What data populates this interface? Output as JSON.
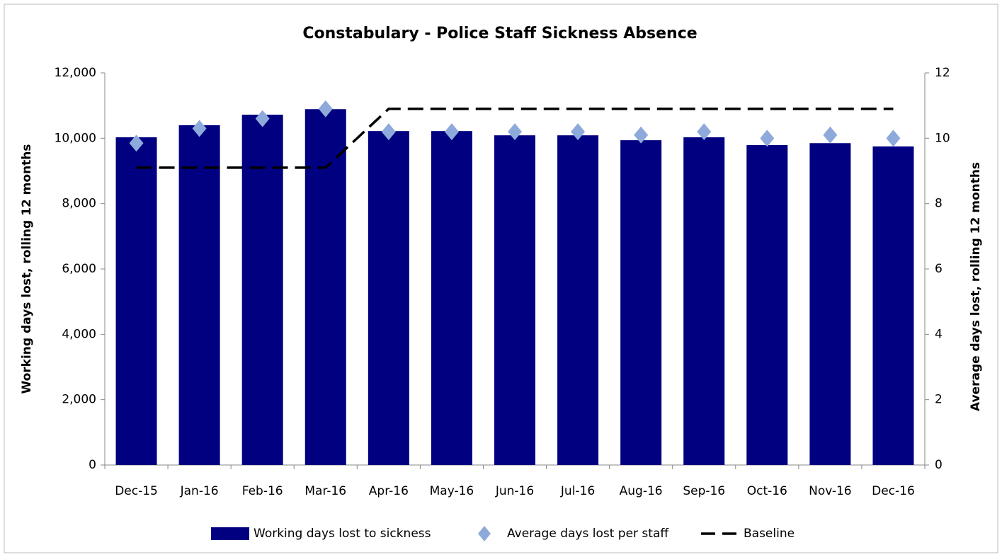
{
  "chart_data": {
    "type": "bar",
    "title": "Constabulary - Police Staff Sickness Absence",
    "y_label": "Working days  lost, rolling 12 months",
    "y2_label": "Average days  lost, rolling 12 months",
    "categories": [
      "Dec-15",
      "Jan-16",
      "Feb-16",
      "Mar-16",
      "Apr-16",
      "May-16",
      "Jun-16",
      "Jul-16",
      "Aug-16",
      "Sep-16",
      "Oct-16",
      "Nov-16",
      "Dec-16"
    ],
    "series": [
      {
        "name": "Working days lost to sickness",
        "type": "bar",
        "color": "#000080",
        "values": [
          10030,
          10400,
          10720,
          10890,
          10220,
          10220,
          10090,
          10090,
          9940,
          10030,
          9790,
          9850,
          9750
        ]
      },
      {
        "name": "Average days lost per staff",
        "type": "scatter",
        "axis": "y2",
        "color": "#8eaadb",
        "values": [
          9.85,
          10.3,
          10.6,
          10.9,
          10.2,
          10.2,
          10.2,
          10.2,
          10.1,
          10.2,
          10.0,
          10.1,
          10.0
        ]
      },
      {
        "name": "Baseline",
        "type": "line",
        "axis": "y2",
        "color": "#000000",
        "dashed": true,
        "values": [
          9.1,
          9.1,
          9.1,
          9.1,
          10.9,
          10.9,
          10.9,
          10.9,
          10.9,
          10.9,
          10.9,
          10.9,
          10.9
        ]
      }
    ],
    "ylim": [
      0,
      12000
    ],
    "yticks": [
      {
        "value": 0,
        "label": "0"
      },
      {
        "value": 2000,
        "label": "2,000"
      },
      {
        "value": 4000,
        "label": "4,000"
      },
      {
        "value": 6000,
        "label": "6,000"
      },
      {
        "value": 8000,
        "label": "8,000"
      },
      {
        "value": 10000,
        "label": "10,000"
      },
      {
        "value": 12000,
        "label": "12,000"
      }
    ],
    "y2lim": [
      0,
      12
    ],
    "y2ticks": [
      0,
      2,
      4,
      6,
      8,
      10,
      12
    ],
    "legend": "bottom"
  }
}
